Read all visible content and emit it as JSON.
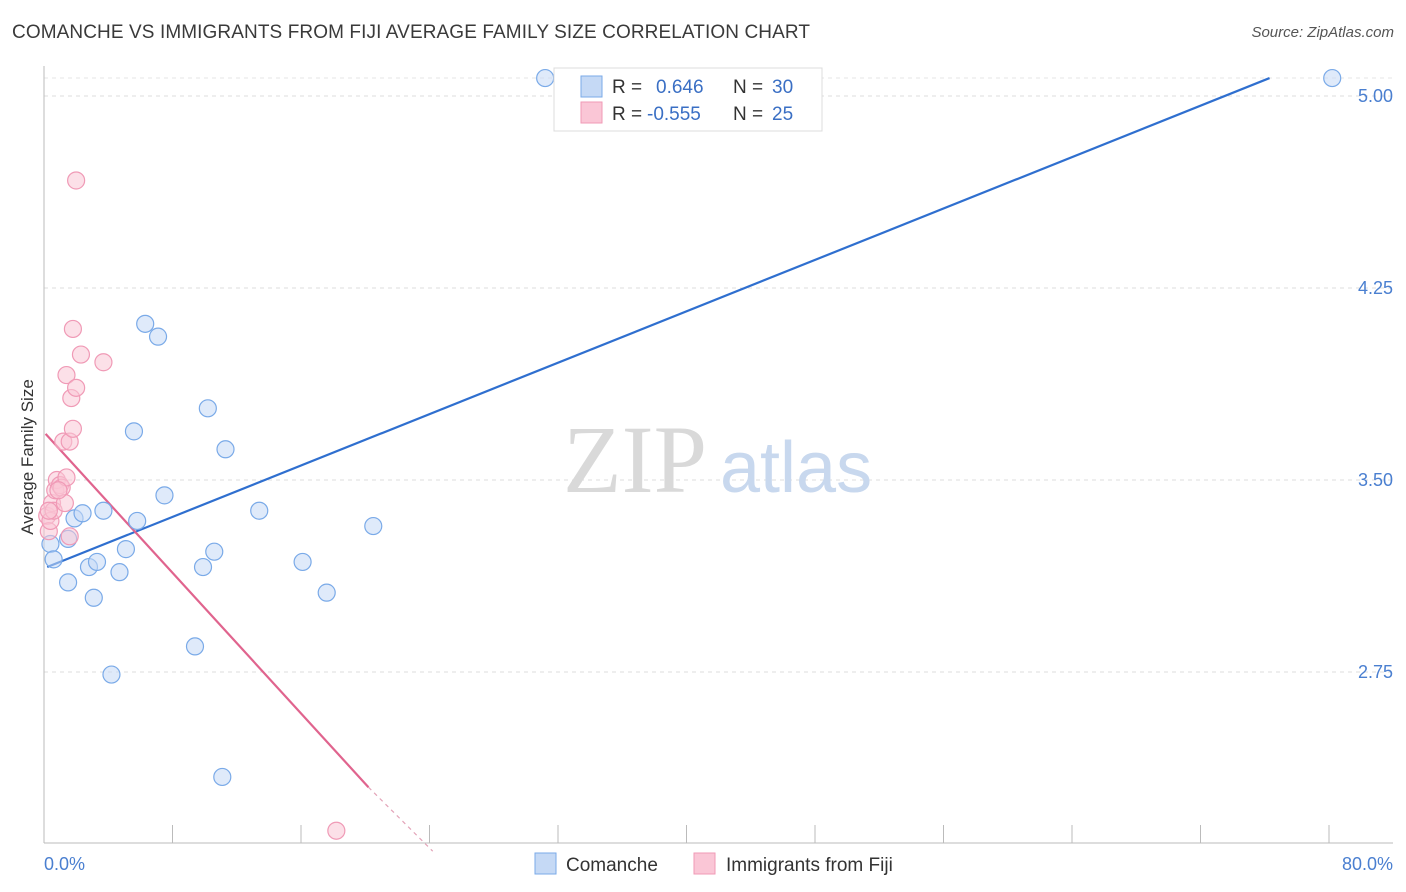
{
  "chart_data": {
    "type": "scatter",
    "title": "COMANCHE VS IMMIGRANTS FROM FIJI AVERAGE FAMILY SIZE CORRELATION CHART",
    "source": "Source: ZipAtlas.com",
    "xlabel": "",
    "ylabel": "Average Family Size",
    "xlim": [
      0,
      80
    ],
    "ylim": [
      2.05,
      5.12
    ],
    "x_tick_labels": [
      "0.0%",
      "80.0%"
    ],
    "y_ticks": [
      2.75,
      3.5,
      4.25,
      5.0
    ],
    "y_tick_labels": [
      "2.75",
      "3.50",
      "4.25",
      "5.00"
    ],
    "grid": true,
    "watermark": {
      "zip": "ZIP",
      "atlas": "atlas"
    },
    "series": [
      {
        "name": "Comanche",
        "color": "#7aaae8",
        "fill": "#c5d9f5",
        "line_color": "#2f6fcf",
        "R": "0.646",
        "N": "30",
        "trend": {
          "x0": 0.2,
          "y0": 3.16,
          "x1": 76.3,
          "y1": 5.07
        },
        "points": [
          [
            0.4,
            3.25
          ],
          [
            0.6,
            3.19
          ],
          [
            1.5,
            3.27
          ],
          [
            1.5,
            3.1
          ],
          [
            1.9,
            3.35
          ],
          [
            2.4,
            3.37
          ],
          [
            2.8,
            3.16
          ],
          [
            3.1,
            3.04
          ],
          [
            3.3,
            3.18
          ],
          [
            3.7,
            3.38
          ],
          [
            4.2,
            2.74
          ],
          [
            4.7,
            3.14
          ],
          [
            5.1,
            3.23
          ],
          [
            5.6,
            3.69
          ],
          [
            5.8,
            3.34
          ],
          [
            7.5,
            3.44
          ],
          [
            6.3,
            4.11
          ],
          [
            7.1,
            4.06
          ],
          [
            9.4,
            2.85
          ],
          [
            9.9,
            3.16
          ],
          [
            10.2,
            3.78
          ],
          [
            10.6,
            3.22
          ],
          [
            11.1,
            2.34
          ],
          [
            11.3,
            3.62
          ],
          [
            13.4,
            3.38
          ],
          [
            16.1,
            3.18
          ],
          [
            17.6,
            3.06
          ],
          [
            20.5,
            3.32
          ],
          [
            31.2,
            5.07
          ],
          [
            80.2,
            5.07
          ]
        ]
      },
      {
        "name": "Immigrants from Fiji",
        "color": "#f09ab6",
        "fill": "#fac6d6",
        "line_color": "#e0648e",
        "R": "-0.555",
        "N": "25",
        "trend": {
          "x0": 0.1,
          "y0": 3.68,
          "x1": 20.2,
          "y1": 2.3
        },
        "trend_dashed": {
          "x0": 20.2,
          "y0": 2.3,
          "x1": 24.2,
          "y1": 2.05
        },
        "points": [
          [
            0.2,
            3.36
          ],
          [
            0.3,
            3.3
          ],
          [
            0.4,
            3.34
          ],
          [
            0.5,
            3.41
          ],
          [
            0.6,
            3.38
          ],
          [
            0.7,
            3.46
          ],
          [
            0.8,
            3.5
          ],
          [
            1.0,
            3.48
          ],
          [
            1.1,
            3.47
          ],
          [
            1.2,
            3.65
          ],
          [
            1.3,
            3.41
          ],
          [
            1.4,
            3.51
          ],
          [
            1.4,
            3.91
          ],
          [
            1.6,
            3.65
          ],
          [
            1.6,
            3.28
          ],
          [
            1.7,
            3.82
          ],
          [
            1.8,
            3.7
          ],
          [
            1.8,
            4.09
          ],
          [
            2.0,
            4.67
          ],
          [
            2.0,
            3.86
          ],
          [
            2.3,
            3.99
          ],
          [
            3.7,
            3.96
          ],
          [
            18.2,
            2.13
          ],
          [
            0.3,
            3.38
          ],
          [
            0.9,
            3.46
          ]
        ]
      }
    ]
  }
}
